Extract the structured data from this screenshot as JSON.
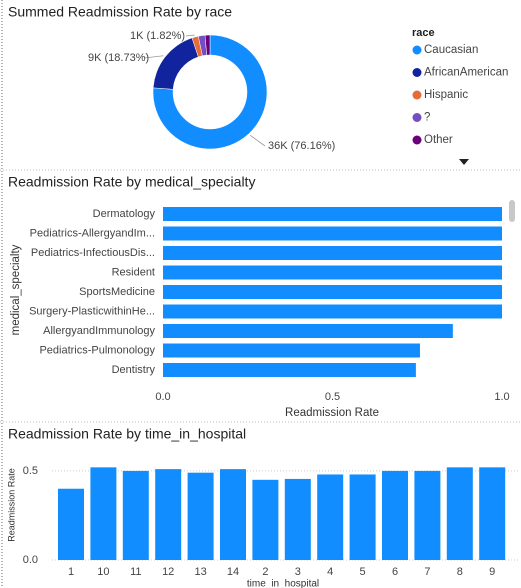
{
  "chart_data": [
    {
      "type": "donut",
      "title": "Summed Readmission Rate by race",
      "legend_title": "race",
      "categories": [
        "Caucasian",
        "AfricanAmerican",
        "Hispanic",
        "?",
        "Other"
      ],
      "values": [
        76.16,
        18.73,
        1.82,
        1.9,
        1.39
      ],
      "value_labels": [
        "36K (76.16%)",
        "9K (18.73%)",
        "1K (1.82%)",
        null,
        null
      ],
      "colors": [
        "#118DFF",
        "#12239E",
        "#E66C37",
        "#744EC2",
        "#6B007B"
      ]
    },
    {
      "type": "hbar",
      "title": "Readmission Rate by medical_specialty",
      "categories": [
        "Dermatology",
        "Pediatrics-AllergyandIm...",
        "Pediatrics-InfectiousDis...",
        "Resident",
        "SportsMedicine",
        "Surgery-PlasticwithinHe...",
        "AllergyandImmunology",
        "Pediatrics-Pulmonology",
        "Dentistry"
      ],
      "values": [
        1,
        1,
        1,
        1,
        1,
        1,
        0.855,
        0.758,
        0.746
      ],
      "color": "#118DFF",
      "xlim": [
        0,
        1
      ],
      "xticks": [
        {
          "value": 0,
          "label": "0.0"
        },
        {
          "value": 0.5,
          "label": "0.5"
        },
        {
          "value": 1,
          "label": "1.0"
        }
      ],
      "xlabel": "Readmission Rate",
      "ylabel": "medical_specialty",
      "grid": false
    },
    {
      "type": "bar",
      "title": "Readmission Rate by time_in_hospital",
      "categories": [
        "1",
        "10",
        "11",
        "12",
        "13",
        "14",
        "2",
        "3",
        "4",
        "5",
        "6",
        "7",
        "8",
        "9"
      ],
      "values": [
        0.4,
        0.52,
        0.5,
        0.51,
        0.49,
        0.51,
        0.45,
        0.455,
        0.48,
        0.48,
        0.5,
        0.5,
        0.52,
        0.52
      ],
      "color": "#118DFF",
      "ylim": [
        0,
        0.55
      ],
      "yticks": [
        {
          "value": 0,
          "label": "0.0"
        },
        {
          "value": 0.5,
          "label": "0.5"
        }
      ],
      "xlabel": "time_in_hospital",
      "ylabel": "Readmission Rate",
      "grid": true
    }
  ]
}
